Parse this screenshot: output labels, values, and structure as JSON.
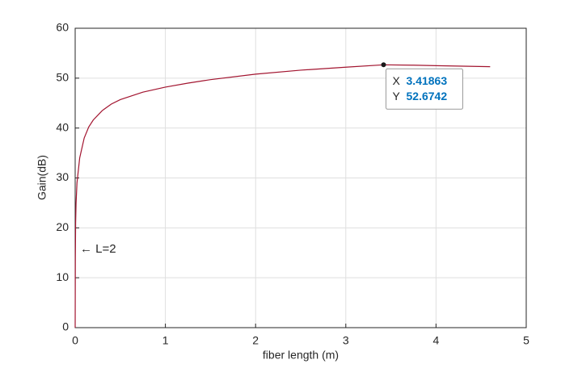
{
  "chart_data": {
    "type": "line",
    "x_label": "fiber length (m)",
    "y_label": "Gain(dB)",
    "x": [
      0,
      0.002,
      0.005,
      0.01,
      0.02,
      0.05,
      0.1,
      0.15,
      0.2,
      0.3,
      0.4,
      0.5,
      0.75,
      1,
      1.25,
      1.5,
      2,
      2.5,
      3,
      3.41863,
      3.75,
      4,
      4.3,
      4.6
    ],
    "series": [
      {
        "color": "#a2142f",
        "values": [
          0,
          14,
          21,
          25,
          29,
          34,
          38,
          40.2,
          41.6,
          43.5,
          44.8,
          45.7,
          47.2,
          48.2,
          49,
          49.7,
          50.8,
          51.6,
          52.2,
          52.6742,
          52.6,
          52.5,
          52.4,
          52.3
        ]
      }
    ],
    "xlim": [
      0,
      5
    ],
    "xticks": [
      0,
      1,
      2,
      3,
      4,
      5
    ],
    "ylim": [
      0,
      60
    ],
    "yticks": [
      0,
      10,
      20,
      30,
      40,
      50,
      60
    ],
    "grid": true,
    "annotation": "← L=2",
    "datatip": {
      "x_label": "X",
      "x": 3.41863,
      "y_label": "Y",
      "y": 52.6742
    }
  }
}
